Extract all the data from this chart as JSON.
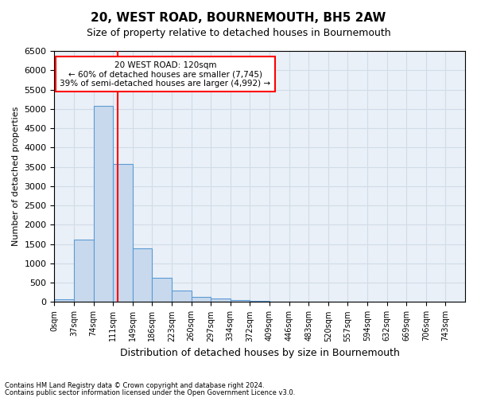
{
  "title": "20, WEST ROAD, BOURNEMOUTH, BH5 2AW",
  "subtitle": "Size of property relative to detached houses in Bournemouth",
  "xlabel": "Distribution of detached houses by size in Bournemouth",
  "ylabel": "Number of detached properties",
  "footnote1": "Contains HM Land Registry data © Crown copyright and database right 2024.",
  "footnote2": "Contains public sector information licensed under the Open Government Licence v3.0.",
  "bin_labels": [
    "0sqm",
    "37sqm",
    "74sqm",
    "111sqm",
    "149sqm",
    "186sqm",
    "223sqm",
    "260sqm",
    "297sqm",
    "334sqm",
    "372sqm",
    "409sqm",
    "446sqm",
    "483sqm",
    "520sqm",
    "557sqm",
    "594sqm",
    "632sqm",
    "669sqm",
    "706sqm",
    "743sqm"
  ],
  "bar_values": [
    75,
    1620,
    5080,
    3570,
    1400,
    620,
    300,
    140,
    95,
    50,
    35,
    0,
    0,
    0,
    0,
    0,
    0,
    0,
    0,
    0,
    0
  ],
  "bar_color": "#c8d9ed",
  "bar_edge_color": "#5b9bd5",
  "vline_x": 3.24,
  "vline_color": "red",
  "ylim": [
    0,
    6500
  ],
  "yticks": [
    0,
    500,
    1000,
    1500,
    2000,
    2500,
    3000,
    3500,
    4000,
    4500,
    5000,
    5500,
    6000,
    6500
  ],
  "annotation_title": "20 WEST ROAD: 120sqm",
  "annotation_line1": "← 60% of detached houses are smaller (7,745)",
  "annotation_line2": "39% of semi-detached houses are larger (4,992) →",
  "annotation_box_color": "white",
  "annotation_box_edge_color": "red",
  "grid_color": "#d0dce8",
  "background_color": "#eaf0f7"
}
